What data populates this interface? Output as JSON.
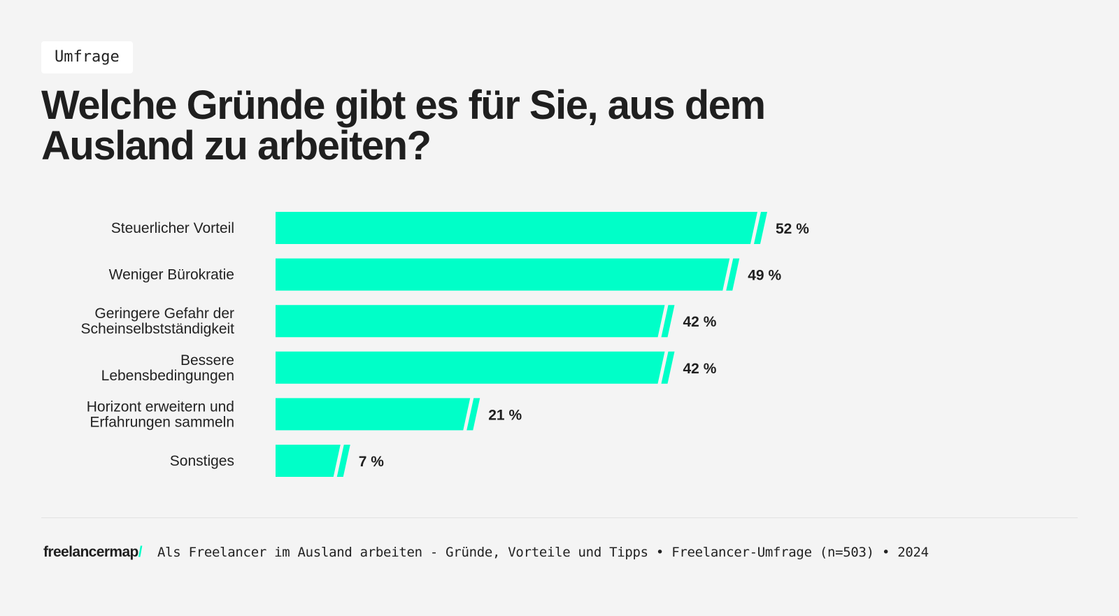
{
  "tag": "Umfrage",
  "title": "Welche Gründe gibt es für Sie, aus dem Ausland zu arbeiten?",
  "chart_data": {
    "type": "bar",
    "orientation": "horizontal",
    "title": "Welche Gründe gibt es für Sie, aus dem Ausland zu arbeiten?",
    "categories": [
      [
        "Steuerlicher Vorteil"
      ],
      [
        "Weniger Bürokratie"
      ],
      [
        "Geringere Gefahr der",
        "Scheinselbstständigkeit"
      ],
      [
        "Bessere",
        "Lebensbedingungen"
      ],
      [
        "Horizont erweitern und",
        "Erfahrungen sammeln"
      ],
      [
        "Sonstiges"
      ]
    ],
    "values": [
      52,
      49,
      42,
      42,
      21,
      7
    ],
    "value_labels": [
      "52 %",
      "49 %",
      "42 %",
      "42 %",
      "21 %",
      "7 %"
    ],
    "unit": "%",
    "bar_color": "#00ffc8",
    "grid": false
  },
  "footer": {
    "logo": "freelancermap",
    "logo_slash": "/",
    "source": "Als Freelancer im Ausland arbeiten - Gründe, Vorteile und Tipps • Freelancer-Umfrage (n=503) • 2024"
  }
}
